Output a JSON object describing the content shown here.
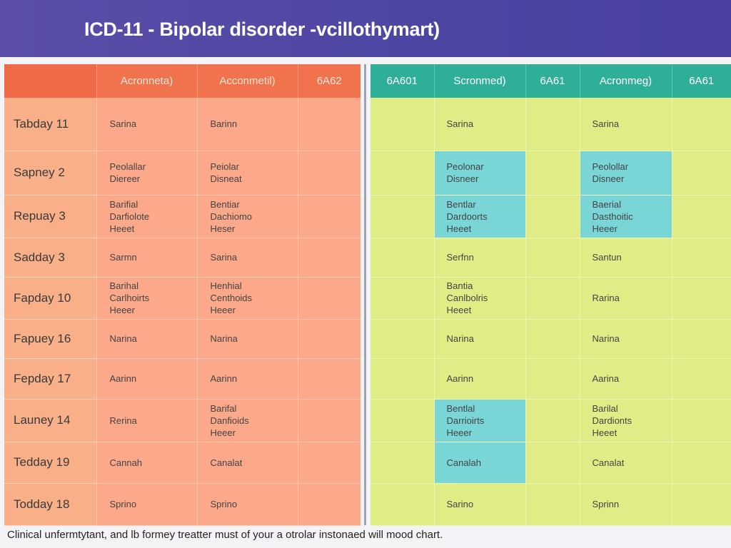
{
  "header": {
    "title": "ICD-11 - Bipolar disorder -vcillothymart)"
  },
  "left_table": {
    "headers": [
      "",
      "Acronneta)",
      "Acconmetil)",
      "6A62"
    ],
    "rows": [
      {
        "label": "Tabday 11",
        "cells": [
          "Sarina",
          "Barinn",
          ""
        ]
      },
      {
        "label": "Sapney 2",
        "cells": [
          "Peolallar\nDiereer",
          "Peiolar\nDisneat",
          ""
        ]
      },
      {
        "label": "Repuay 3",
        "cells": [
          "Barifial\nDarfiolote\nHeeet",
          "Bentiar\nDachiomo\nHeser",
          ""
        ]
      },
      {
        "label": "Sadday 3",
        "cells": [
          "Sarmn",
          "Sarina",
          ""
        ]
      },
      {
        "label": "Fapday 10",
        "cells": [
          "Barihal\nCarlhoirts\nHeeer",
          "Henhial\nCenthoids\nHeeer",
          ""
        ]
      },
      {
        "label": "Fapuey 16",
        "cells": [
          "Narina",
          "Narina",
          ""
        ]
      },
      {
        "label": "Fepday 17",
        "cells": [
          "Aarinn",
          "Aarinn",
          ""
        ]
      },
      {
        "label": "Launey 14",
        "cells": [
          "Rerina",
          "Barifal\nDanfioids\nHeeer",
          ""
        ]
      },
      {
        "label": "Tedday 19",
        "cells": [
          "Cannah",
          "Canalat",
          ""
        ]
      },
      {
        "label": "Todday 18",
        "cells": [
          "Sprino",
          "Sprino",
          ""
        ]
      }
    ]
  },
  "right_table": {
    "headers": [
      "6A601",
      "Scronmed)",
      "6A61",
      "Acronmeg)",
      "6A61"
    ],
    "rows": [
      {
        "cells": [
          "",
          "Sarina",
          "",
          "Sarina",
          ""
        ],
        "highlight": [
          false,
          false,
          false,
          false,
          false
        ]
      },
      {
        "cells": [
          "",
          "Peolonar\nDisneer",
          "",
          "Peolollar\nDisneer",
          ""
        ],
        "highlight": [
          false,
          true,
          false,
          true,
          false
        ]
      },
      {
        "cells": [
          "",
          "Bentlar\nDardoorts\nHeeet",
          "",
          "Baerial\nDasthoitic\nHeeer",
          ""
        ],
        "highlight": [
          false,
          true,
          false,
          true,
          false
        ]
      },
      {
        "cells": [
          "",
          "Serfnn",
          "",
          "Santun",
          ""
        ],
        "highlight": [
          false,
          false,
          false,
          false,
          false
        ]
      },
      {
        "cells": [
          "",
          "Bantia\nCanlbolris\nHeeet",
          "",
          "Rarina",
          ""
        ],
        "highlight": [
          false,
          false,
          false,
          false,
          false
        ]
      },
      {
        "cells": [
          "",
          "Narina",
          "",
          "Narina",
          ""
        ],
        "highlight": [
          false,
          false,
          false,
          false,
          false
        ]
      },
      {
        "cells": [
          "",
          "Aarinn",
          "",
          "Aarina",
          ""
        ],
        "highlight": [
          false,
          false,
          false,
          false,
          false
        ]
      },
      {
        "cells": [
          "",
          "Bentlal\nDarrioirts\nHeeer",
          "",
          "Barilal\nDardionts\nHeeet",
          ""
        ],
        "highlight": [
          false,
          true,
          false,
          false,
          false
        ]
      },
      {
        "cells": [
          "",
          "Canalah",
          "",
          "Canalat",
          ""
        ],
        "highlight": [
          false,
          true,
          false,
          false,
          false
        ]
      },
      {
        "cells": [
          "",
          "Sarino",
          "",
          "Sprinn",
          ""
        ],
        "highlight": [
          false,
          false,
          false,
          false,
          false
        ]
      }
    ]
  },
  "footer": {
    "text": "Clinical unfermtytant, and lb formey treatter must of your a otrolar instonaed will mood chart."
  },
  "colors": {
    "header_bg": "#4c46a2",
    "left_header": "#f0734e",
    "left_cells": "#fba98a",
    "row_labels": "#f9b089",
    "right_header": "#2fae98",
    "right_cells": "#e0ed86",
    "highlight": "#79d5d6"
  }
}
